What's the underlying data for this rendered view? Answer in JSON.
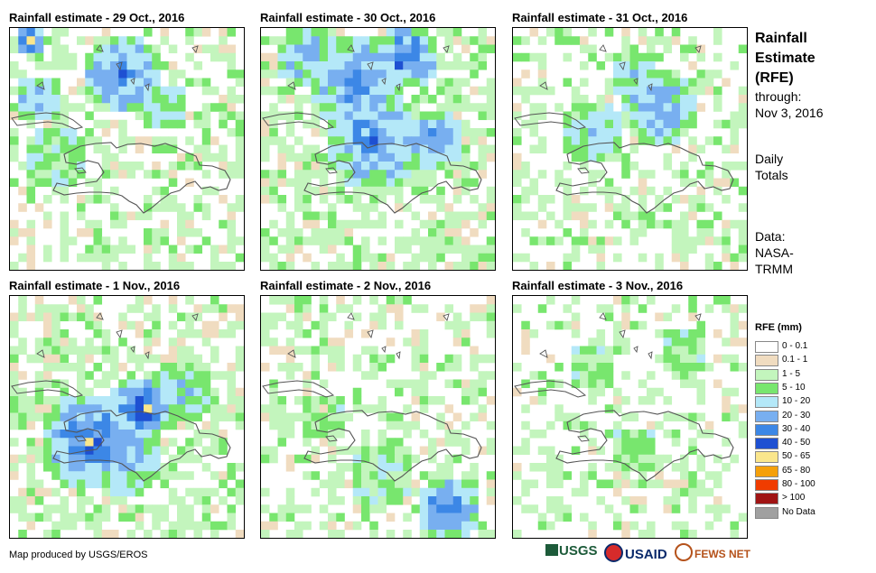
{
  "panels": [
    {
      "title": "Rainfall estimate - 29 Oct., 2016"
    },
    {
      "title": "Rainfall estimate - 30 Oct., 2016"
    },
    {
      "title": "Rainfall estimate - 31 Oct., 2016"
    },
    {
      "title": "Rainfall estimate - 1 Nov., 2016"
    },
    {
      "title": "Rainfall estimate - 2 Nov., 2016"
    },
    {
      "title": "Rainfall estimate - 3 Nov., 2016"
    }
  ],
  "sidebar": {
    "title_line1": "Rainfall",
    "title_line2": "Estimate",
    "title_line3": "(RFE)",
    "through_label": "through:",
    "through_date": "Nov 3, 2016",
    "totals_line1": "Daily",
    "totals_line2": "Totals",
    "data_label": "Data:",
    "data_source_line1": "NASA-",
    "data_source_line2": "TRMM"
  },
  "legend": {
    "title": "RFE (mm)",
    "classes": [
      {
        "label": "0 - 0.1",
        "color": "#ffffff"
      },
      {
        "label": "0.1 - 1",
        "color": "#f0dcc0"
      },
      {
        "label": "1 - 5",
        "color": "#c3f5bd"
      },
      {
        "label": "5 - 10",
        "color": "#78e66e"
      },
      {
        "label": "10 - 20",
        "color": "#b4e8f8"
      },
      {
        "label": "20 - 30",
        "color": "#78aff0"
      },
      {
        "label": "30 - 40",
        "color": "#3c87e6"
      },
      {
        "label": "40 - 50",
        "color": "#1e50d2"
      },
      {
        "label": "50 - 65",
        "color": "#fae68c"
      },
      {
        "label": "65 - 80",
        "color": "#f5a00a"
      },
      {
        "label": "80 - 100",
        "color": "#f03c00"
      },
      {
        "label": "> 100",
        "color": "#a01414"
      },
      {
        "label": "No Data",
        "color": "#a0a0a0"
      }
    ]
  },
  "footer": {
    "credit": "Map produced by USGS/EROS",
    "logo_usgs": "USGS",
    "logo_usaid": "USAID",
    "logo_fewsnet": "FEWS NET"
  }
}
